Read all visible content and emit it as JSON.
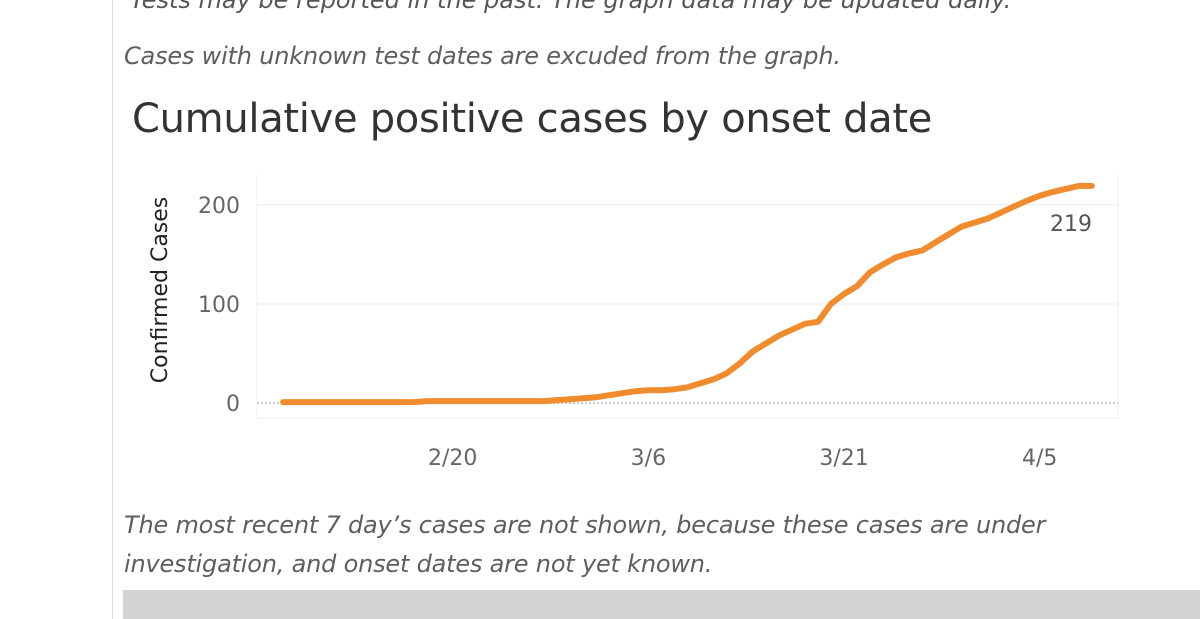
{
  "texts": {
    "cut_line": "Tests may be reported in the past. The graph data may be updated daily.",
    "note_top": "Cases with unknown test dates are excuded from the graph.",
    "note_bottom": "The most recent 7 day’s cases are not shown, because these cases are under investigation, and onset dates are not yet known."
  },
  "colors": {
    "line": "#f08c2e",
    "grid": "#ececec",
    "zero_line": "#bbbbbb",
    "footer": "#d4d4d4"
  },
  "chart_data": {
    "type": "line",
    "title": "Cumulative positive cases by onset date",
    "ylabel": "Confirmed Cases",
    "xlabel": "",
    "x_tick_labels": [
      "2/20",
      "3/6",
      "3/21",
      "4/5"
    ],
    "y_tick_labels": [
      "0",
      "100",
      "200"
    ],
    "x_tick_dates": [
      "2020-02-20",
      "2020-03-06",
      "2020-03-21",
      "2020-04-05"
    ],
    "y_ticks": [
      0,
      100,
      200
    ],
    "ylim": [
      -15,
      230
    ],
    "xlim": [
      "2020-02-05",
      "2020-04-11"
    ],
    "grid": true,
    "end_label": "219",
    "series": [
      {
        "x": [
          "2020-02-07",
          "2020-02-08",
          "2020-02-09",
          "2020-02-10",
          "2020-02-11",
          "2020-02-12",
          "2020-02-13",
          "2020-02-14",
          "2020-02-15",
          "2020-02-16",
          "2020-02-17",
          "2020-02-18",
          "2020-02-19",
          "2020-02-20",
          "2020-02-21",
          "2020-02-22",
          "2020-02-23",
          "2020-02-24",
          "2020-02-25",
          "2020-02-26",
          "2020-02-27",
          "2020-02-28",
          "2020-02-29",
          "2020-03-01",
          "2020-03-02",
          "2020-03-03",
          "2020-03-04",
          "2020-03-05",
          "2020-03-06",
          "2020-03-07",
          "2020-03-08",
          "2020-03-09",
          "2020-03-10",
          "2020-03-11",
          "2020-03-12",
          "2020-03-13",
          "2020-03-14",
          "2020-03-15",
          "2020-03-16",
          "2020-03-17",
          "2020-03-18",
          "2020-03-19",
          "2020-03-20",
          "2020-03-21",
          "2020-03-22",
          "2020-03-23",
          "2020-03-24",
          "2020-03-25",
          "2020-03-26",
          "2020-03-27",
          "2020-03-28",
          "2020-03-29",
          "2020-03-30",
          "2020-03-31",
          "2020-04-01",
          "2020-04-02",
          "2020-04-03",
          "2020-04-04",
          "2020-04-05",
          "2020-04-06",
          "2020-04-07",
          "2020-04-08",
          "2020-04-09"
        ],
        "y": [
          1,
          1,
          1,
          1,
          1,
          1,
          1,
          1,
          1,
          1,
          1,
          2,
          2,
          2,
          2,
          2,
          2,
          2,
          2,
          2,
          2,
          3,
          4,
          5,
          6,
          8,
          10,
          12,
          13,
          13,
          14,
          16,
          20,
          24,
          30,
          40,
          52,
          60,
          68,
          74,
          80,
          82,
          100,
          110,
          118,
          132,
          140,
          147,
          151,
          154,
          162,
          170,
          178,
          182,
          186,
          192,
          198,
          204,
          209,
          213,
          216,
          219,
          219
        ]
      }
    ]
  }
}
